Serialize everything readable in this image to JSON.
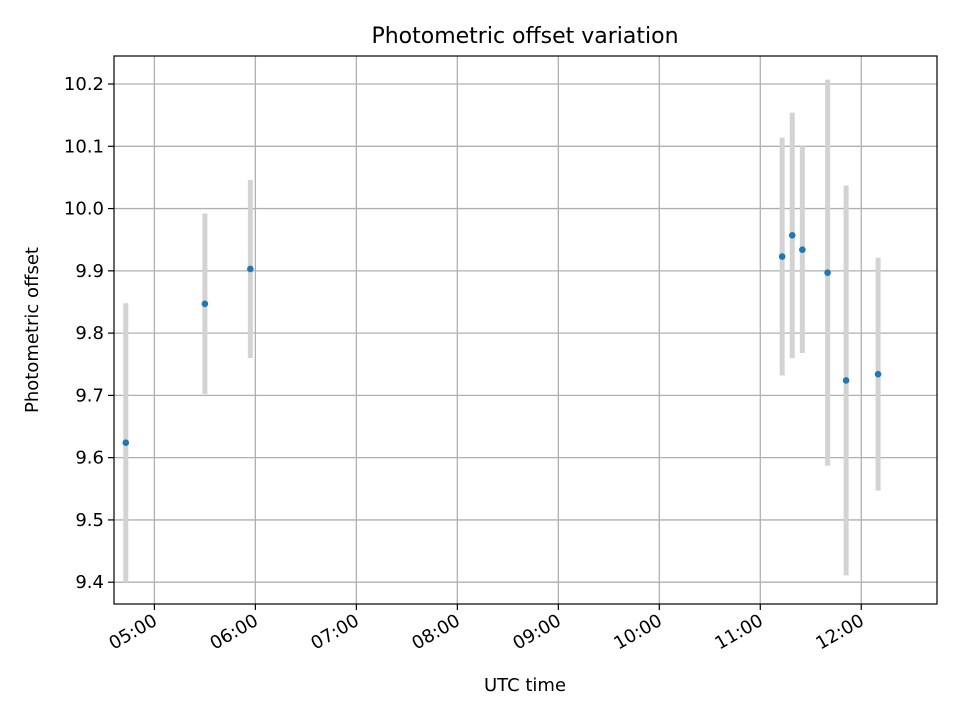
{
  "chart_data": {
    "type": "scatter",
    "title": "Photometric offset variation",
    "xlabel": "UTC time",
    "ylabel": "Photometric offset",
    "xlim": [
      "04:36",
      "12:45"
    ],
    "ylim": [
      9.365,
      10.245
    ],
    "x_ticks": [
      "05:00",
      "06:00",
      "07:00",
      "08:00",
      "09:00",
      "10:00",
      "11:00",
      "12:00"
    ],
    "y_ticks": [
      "9.4",
      "9.5",
      "9.6",
      "9.7",
      "9.8",
      "9.9",
      "10.0",
      "10.1",
      "10.2"
    ],
    "grid": true,
    "colors": {
      "points": "#1f77b4",
      "errorbars": "#d3d3d3",
      "grid": "#b0b0b0"
    },
    "points": [
      {
        "x": "04:43",
        "y": 9.624,
        "err": 0.224
      },
      {
        "x": "05:30",
        "y": 9.847,
        "err": 0.145
      },
      {
        "x": "05:57",
        "y": 9.903,
        "err": 0.143
      },
      {
        "x": "11:13",
        "y": 9.923,
        "err": 0.191
      },
      {
        "x": "11:19",
        "y": 9.957,
        "err": 0.197
      },
      {
        "x": "11:25",
        "y": 9.934,
        "err": 0.166
      },
      {
        "x": "11:40",
        "y": 9.897,
        "err": 0.31
      },
      {
        "x": "11:51",
        "y": 9.724,
        "err": 0.313
      },
      {
        "x": "12:10",
        "y": 9.734,
        "err": 0.187
      }
    ]
  }
}
